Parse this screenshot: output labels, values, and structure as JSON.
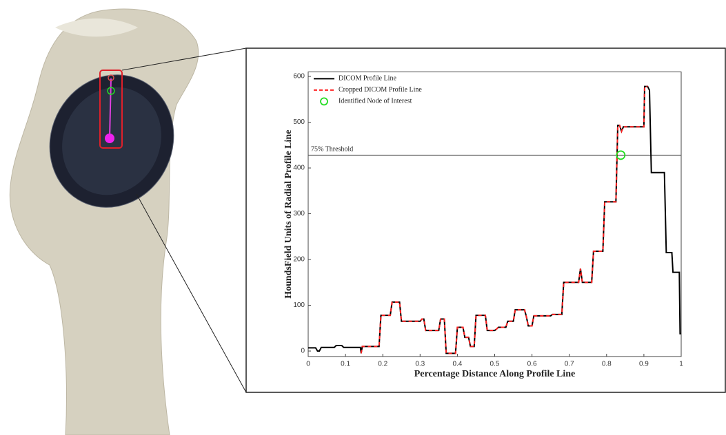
{
  "chart_data": {
    "type": "line",
    "x_label": "Percentage Distance Along Profile Line",
    "y_label": "HoundsField Units of Radial Profile Line",
    "xlim": [
      0,
      1
    ],
    "xticks": [
      0,
      0.1,
      0.2,
      0.3,
      0.4,
      0.5,
      0.6,
      0.7,
      0.8,
      0.9,
      1
    ],
    "ylim": [
      -12,
      610
    ],
    "yticks": [
      0,
      100,
      200,
      300,
      400,
      500,
      600
    ],
    "legend": "upper left",
    "threshold": {
      "value": 428,
      "label": "75% Threshold",
      "color": "#555555"
    },
    "series": [
      {
        "name": "DICOM Profile Line",
        "color": "#000000",
        "style": "solid",
        "x": [
          0,
          0.02,
          0.025,
          0.03,
          0.035,
          0.07,
          0.075,
          0.09,
          0.095,
          0.14,
          0.142,
          0.145,
          0.19,
          0.195,
          0.22,
          0.225,
          0.245,
          0.25,
          0.3,
          0.305,
          0.31,
          0.315,
          0.35,
          0.355,
          0.365,
          0.37,
          0.395,
          0.4,
          0.415,
          0.42,
          0.43,
          0.435,
          0.445,
          0.45,
          0.475,
          0.48,
          0.5,
          0.505,
          0.51,
          0.53,
          0.535,
          0.55,
          0.555,
          0.58,
          0.585,
          0.59,
          0.6,
          0.605,
          0.65,
          0.655,
          0.68,
          0.685,
          0.725,
          0.73,
          0.735,
          0.76,
          0.765,
          0.79,
          0.795,
          0.825,
          0.83,
          0.835,
          0.84,
          0.845,
          0.9,
          0.902,
          0.91,
          0.915,
          0.92,
          0.955,
          0.96,
          0.975,
          0.978,
          0.995,
          0.997,
          1
        ],
        "values": [
          7,
          7,
          0,
          0,
          8,
          8,
          12,
          12,
          8,
          8,
          -5,
          10,
          10,
          78,
          78,
          107,
          107,
          65,
          65,
          70,
          70,
          45,
          45,
          70,
          70,
          -5,
          -5,
          52,
          52,
          30,
          30,
          10,
          10,
          78,
          78,
          45,
          45,
          48,
          52,
          52,
          65,
          65,
          90,
          90,
          75,
          55,
          55,
          77,
          77,
          80,
          80,
          150,
          150,
          180,
          150,
          150,
          218,
          218,
          326,
          326,
          493,
          493,
          480,
          490,
          490,
          578,
          578,
          570,
          390,
          390,
          215,
          215,
          172,
          172,
          38,
          38
        ]
      },
      {
        "name": "Cropped DICOM Profile Line",
        "color": "#ff2020",
        "style": "dashed",
        "x": [
          0.142,
          0.145,
          0.19,
          0.195,
          0.22,
          0.225,
          0.245,
          0.25,
          0.3,
          0.305,
          0.31,
          0.315,
          0.35,
          0.355,
          0.365,
          0.37,
          0.395,
          0.4,
          0.415,
          0.42,
          0.43,
          0.435,
          0.445,
          0.45,
          0.475,
          0.48,
          0.5,
          0.505,
          0.51,
          0.53,
          0.535,
          0.55,
          0.555,
          0.58,
          0.585,
          0.59,
          0.6,
          0.605,
          0.65,
          0.655,
          0.68,
          0.685,
          0.725,
          0.73,
          0.735,
          0.76,
          0.765,
          0.79,
          0.795,
          0.825,
          0.83,
          0.835,
          0.84,
          0.845,
          0.9,
          0.902,
          0.91
        ],
        "values": [
          -5,
          10,
          10,
          78,
          78,
          107,
          107,
          65,
          65,
          70,
          70,
          45,
          45,
          70,
          70,
          -5,
          -5,
          52,
          52,
          30,
          30,
          10,
          10,
          78,
          78,
          45,
          45,
          48,
          52,
          52,
          65,
          65,
          90,
          90,
          75,
          55,
          55,
          77,
          77,
          80,
          80,
          150,
          150,
          180,
          150,
          150,
          218,
          218,
          326,
          326,
          493,
          493,
          480,
          490,
          490,
          578,
          578
        ]
      },
      {
        "name": "Identified Node of Interest",
        "color": "#22dd22",
        "style": "marker",
        "x": [
          0.838
        ],
        "values": [
          428
        ]
      }
    ]
  }
}
